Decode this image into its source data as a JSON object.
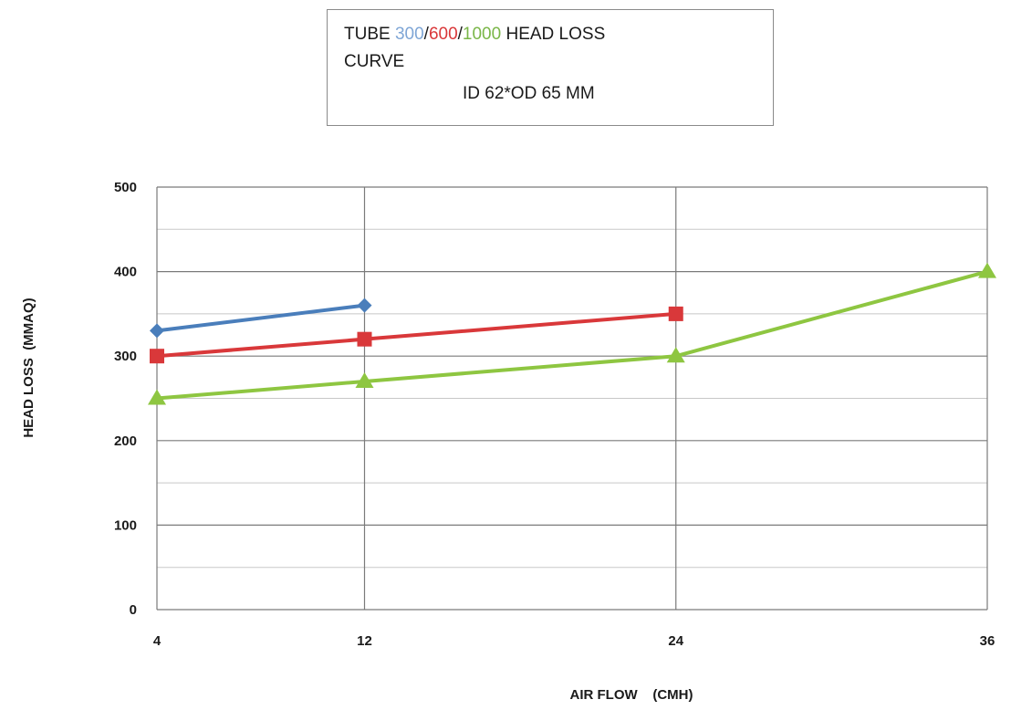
{
  "chart_data": {
    "type": "line",
    "title": {
      "line1_prefix": "TUBE ",
      "line1_s1": "300",
      "line1_sep1": "/",
      "line1_s2": "600",
      "line1_sep2": "/",
      "line1_s3": "1000",
      "line1_suffix": " HEAD LOSS",
      "line2": "CURVE",
      "line3": "ID 62*OD 65 MM"
    },
    "xlabel": "AIR FLOW    (CMH)",
    "ylabel": "HEAD LOSS  (MMAQ)",
    "categories": [
      "4",
      "12",
      "24",
      "36"
    ],
    "yticks": [
      "0",
      "100",
      "200",
      "300",
      "400",
      "500"
    ],
    "ylim": [
      0,
      500
    ],
    "grid": true,
    "series": [
      {
        "name": "300",
        "color": "#4a7ebb",
        "marker": "diamond",
        "values": [
          330,
          360,
          null,
          null
        ]
      },
      {
        "name": "600",
        "color": "#d9383a",
        "marker": "square",
        "values": [
          300,
          320,
          350,
          null
        ]
      },
      {
        "name": "1000",
        "color": "#8ec641",
        "marker": "triangle",
        "values": [
          250,
          270,
          300,
          400
        ]
      }
    ]
  }
}
